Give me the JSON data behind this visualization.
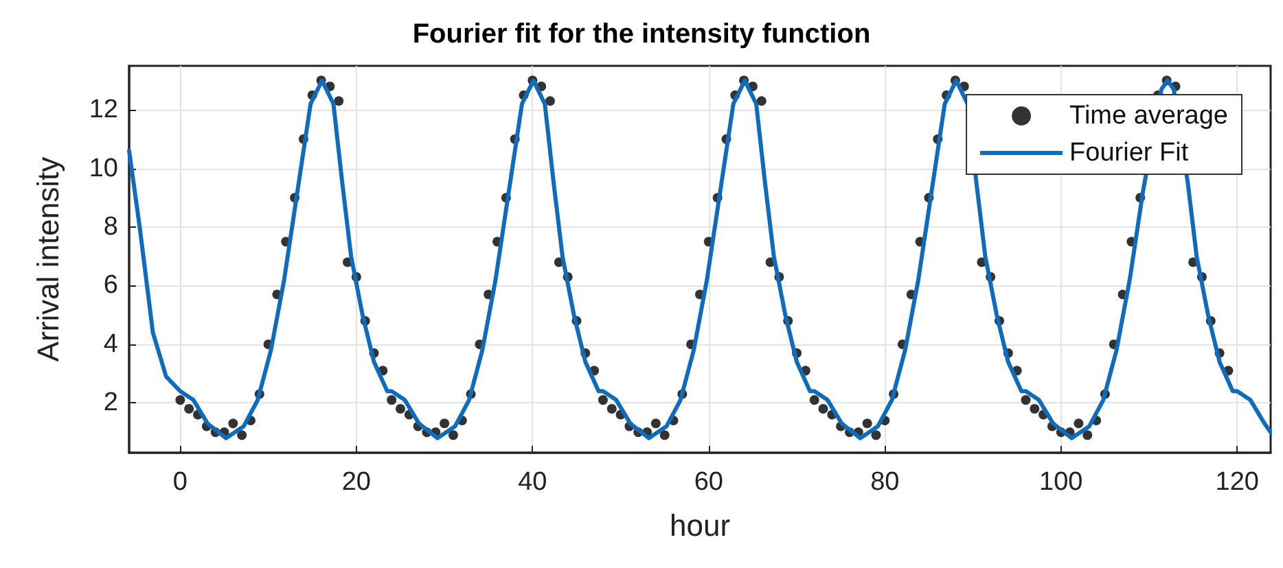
{
  "chart_data": {
    "type": "scatter",
    "title": "Fourier fit for the intensity function",
    "xlabel": "hour",
    "ylabel": "Arrival intensity",
    "xlim": [
      -5.8,
      123.8
    ],
    "xticks": [
      0,
      20,
      40,
      60,
      80,
      100,
      120
    ],
    "ylim": [
      0.3,
      13.5
    ],
    "yticks": [
      2,
      4,
      6,
      8,
      10,
      12
    ],
    "grid": true,
    "legend": "top right",
    "series": [
      {
        "name": "Time average",
        "marker": "circle",
        "color": "#000000",
        "x": [
          0,
          1,
          2,
          3,
          4,
          5,
          6,
          7,
          8,
          9,
          10,
          11,
          12,
          13,
          14,
          15,
          16,
          17,
          18,
          19,
          20,
          21,
          22,
          23,
          24,
          25,
          26,
          27,
          28,
          29,
          30,
          31,
          32,
          33,
          34,
          35,
          36,
          37,
          38,
          39,
          40,
          41,
          42,
          43,
          44,
          45,
          46,
          47,
          48,
          49,
          50,
          51,
          52,
          53,
          54,
          55,
          56,
          57,
          58,
          59,
          60,
          61,
          62,
          63,
          64,
          65,
          66,
          67,
          68,
          69,
          70,
          71,
          72,
          73,
          74,
          75,
          76,
          77,
          78,
          79,
          80,
          81,
          82,
          83,
          84,
          85,
          86,
          87,
          88,
          89,
          90,
          91,
          92,
          93,
          94,
          95,
          96,
          97,
          98,
          99,
          100,
          101,
          102,
          103,
          104,
          105,
          106,
          107,
          108,
          109,
          110,
          111,
          112,
          113,
          114,
          115,
          116,
          117,
          118,
          119
        ],
        "values": [
          2.1,
          1.8,
          1.6,
          1.2,
          1.0,
          1.0,
          1.3,
          0.9,
          1.4,
          2.3,
          4.0,
          5.7,
          7.5,
          9.0,
          11.0,
          12.5,
          13.0,
          12.8,
          12.3,
          6.8,
          6.3,
          4.8,
          3.7,
          3.1,
          2.1,
          1.8,
          1.6,
          1.2,
          1.0,
          1.0,
          1.3,
          0.9,
          1.4,
          2.3,
          4.0,
          5.7,
          7.5,
          9.0,
          11.0,
          12.5,
          13.0,
          12.8,
          12.3,
          6.8,
          6.3,
          4.8,
          3.7,
          3.1,
          2.1,
          1.8,
          1.6,
          1.2,
          1.0,
          1.0,
          1.3,
          0.9,
          1.4,
          2.3,
          4.0,
          5.7,
          7.5,
          9.0,
          11.0,
          12.5,
          13.0,
          12.8,
          12.3,
          6.8,
          6.3,
          4.8,
          3.7,
          3.1,
          2.1,
          1.8,
          1.6,
          1.2,
          1.0,
          1.0,
          1.3,
          0.9,
          1.4,
          2.3,
          4.0,
          5.7,
          7.5,
          9.0,
          11.0,
          12.5,
          13.0,
          12.8,
          null,
          6.8,
          6.3,
          4.8,
          3.7,
          3.1,
          2.1,
          1.8,
          1.6,
          1.2,
          1.0,
          1.0,
          1.3,
          0.9,
          1.4,
          2.3,
          4.0,
          5.7,
          7.5,
          9.0,
          null,
          12.5,
          13.0,
          12.8,
          null,
          6.8,
          6.3,
          4.8,
          3.7,
          3.1
        ]
      },
      {
        "name": "Fourier Fit",
        "type": "line",
        "line_style": "solid",
        "color": "#0f6cbd",
        "x": [
          -5.8,
          -4.6,
          -3.1,
          -1.6,
          0,
          1.5,
          3.1,
          5.2,
          7.2,
          8.8,
          10.3,
          11.8,
          13.3,
          14.8,
          16.1,
          17.4,
          18.4,
          19.4,
          20.7,
          22.0,
          23.5,
          24,
          25.5,
          27.1,
          29.2,
          31.2,
          32.8,
          34.3,
          35.8,
          37.3,
          38.8,
          40.1,
          41.4,
          42.4,
          43.4,
          44.7,
          46.0,
          47.5,
          48,
          49.5,
          51.1,
          53.2,
          55.2,
          56.8,
          58.3,
          59.8,
          61.3,
          62.8,
          64.1,
          65.4,
          66.4,
          67.4,
          68.7,
          70.0,
          71.5,
          72,
          73.5,
          75.1,
          77.2,
          79.2,
          80.8,
          82.3,
          83.8,
          85.3,
          86.8,
          88.1,
          89.4,
          90.4,
          91.4,
          92.7,
          94.0,
          95.5,
          96,
          97.5,
          99.1,
          101.2,
          103.2,
          104.8,
          106.3,
          107.8,
          109.3,
          111.4,
          112.1,
          112.8,
          114.4,
          115.4,
          116.7,
          118.0,
          119.5,
          120,
          121.5,
          123.1,
          123.8
        ],
        "values": [
          10.6,
          8.0,
          4.4,
          2.9,
          2.4,
          2.1,
          1.3,
          0.8,
          1.2,
          2.1,
          3.8,
          6.2,
          9.2,
          12.2,
          13.0,
          12.2,
          9.5,
          7.0,
          5.0,
          3.4,
          2.4,
          2.4,
          2.1,
          1.3,
          0.8,
          1.2,
          2.1,
          3.8,
          6.2,
          9.2,
          12.2,
          13.0,
          12.2,
          9.5,
          7.0,
          5.0,
          3.4,
          2.4,
          2.4,
          2.1,
          1.3,
          0.8,
          1.2,
          2.1,
          3.8,
          6.2,
          9.2,
          12.2,
          13.0,
          12.2,
          9.5,
          7.0,
          5.0,
          3.4,
          2.4,
          2.4,
          2.1,
          1.3,
          0.8,
          1.2,
          2.1,
          3.8,
          6.2,
          9.2,
          12.2,
          13.0,
          12.2,
          9.5,
          7.0,
          5.0,
          3.4,
          2.4,
          2.4,
          2.1,
          1.3,
          0.8,
          1.2,
          2.1,
          3.8,
          6.2,
          9.2,
          12.7,
          13.0,
          12.7,
          9.5,
          7.0,
          5.0,
          3.4,
          2.4,
          2.4,
          2.1,
          1.3,
          1.0
        ]
      }
    ]
  }
}
